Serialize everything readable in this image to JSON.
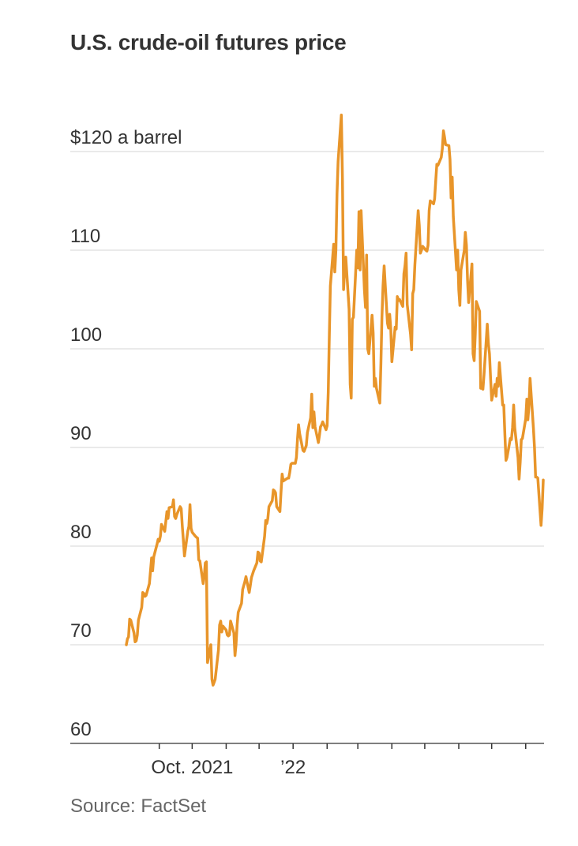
{
  "title": "U.S. crude-oil futures price",
  "source": "Source: FactSet",
  "colors": {
    "line": "#e8952a",
    "grid": "#dddddd",
    "axis": "#333333",
    "text": "#333333"
  },
  "chart_data": {
    "type": "line",
    "title": "U.S. crude-oil futures price",
    "ylim": [
      60,
      123
    ],
    "yticks": [
      60,
      70,
      80,
      90,
      100,
      110,
      120
    ],
    "ytick_labels": [
      "60",
      "70",
      "80",
      "90",
      "100",
      "110",
      "$120 a barrel"
    ],
    "xlim": [
      "2021-08-02",
      "2022-08-05"
    ],
    "xticks": [
      "2021-09-01",
      "2021-10-01",
      "2021-11-01",
      "2021-12-01",
      "2022-01-01",
      "2022-02-01",
      "2022-03-01",
      "2022-04-01",
      "2022-05-01",
      "2022-06-01",
      "2022-07-01",
      "2022-08-01"
    ],
    "xtick_labels": [
      {
        "date": "2021-10-01",
        "label": "Oct. 2021"
      },
      {
        "date": "2022-01-01",
        "label": "’22"
      }
    ],
    "grid": true,
    "series": [
      {
        "points": [
          [
            "2021-08-02",
            70.0
          ],
          [
            "2021-08-03",
            70.6
          ],
          [
            "2021-08-04",
            70.8
          ],
          [
            "2021-08-05",
            72.6
          ],
          [
            "2021-08-06",
            72.5
          ],
          [
            "2021-08-09",
            71.2
          ],
          [
            "2021-08-10",
            70.3
          ],
          [
            "2021-08-11",
            70.4
          ],
          [
            "2021-08-12",
            71.0
          ],
          [
            "2021-08-13",
            72.5
          ],
          [
            "2021-08-16",
            73.8
          ],
          [
            "2021-08-17",
            75.3
          ],
          [
            "2021-08-18",
            75.2
          ],
          [
            "2021-08-19",
            74.9
          ],
          [
            "2021-08-20",
            75.0
          ],
          [
            "2021-08-23",
            76.2
          ],
          [
            "2021-08-24",
            77.5
          ],
          [
            "2021-08-25",
            78.8
          ],
          [
            "2021-08-26",
            77.5
          ],
          [
            "2021-08-27",
            78.9
          ],
          [
            "2021-08-30",
            80.2
          ],
          [
            "2021-08-31",
            80.7
          ],
          [
            "2021-09-01",
            80.5
          ],
          [
            "2021-09-02",
            81.0
          ],
          [
            "2021-09-03",
            82.2
          ],
          [
            "2021-09-06",
            81.5
          ],
          [
            "2021-09-07",
            82.5
          ],
          [
            "2021-09-08",
            83.5
          ],
          [
            "2021-09-09",
            82.8
          ],
          [
            "2021-09-10",
            83.9
          ],
          [
            "2021-09-13",
            84.0
          ],
          [
            "2021-09-14",
            84.7
          ],
          [
            "2021-09-15",
            83.0
          ],
          [
            "2021-09-16",
            82.8
          ],
          [
            "2021-09-17",
            83.2
          ],
          [
            "2021-09-20",
            84.0
          ],
          [
            "2021-09-21",
            83.8
          ],
          [
            "2021-09-22",
            82.0
          ],
          [
            "2021-09-23",
            80.5
          ],
          [
            "2021-09-24",
            79.0
          ],
          [
            "2021-09-27",
            81.5
          ],
          [
            "2021-09-28",
            82.0
          ],
          [
            "2021-09-29",
            84.2
          ],
          [
            "2021-09-30",
            81.8
          ],
          [
            "2021-10-01",
            81.4
          ],
          [
            "2021-10-04",
            81.0
          ],
          [
            "2021-10-05",
            80.9
          ],
          [
            "2021-10-06",
            80.8
          ],
          [
            "2021-10-07",
            78.6
          ],
          [
            "2021-10-08",
            78.5
          ],
          [
            "2021-10-11",
            76.2
          ],
          [
            "2021-10-12",
            77.0
          ],
          [
            "2021-10-13",
            78.3
          ],
          [
            "2021-10-14",
            78.4
          ],
          [
            "2021-10-15",
            68.2
          ],
          [
            "2021-10-18",
            70.0
          ],
          [
            "2021-10-19",
            66.5
          ],
          [
            "2021-10-20",
            65.9
          ],
          [
            "2021-10-21",
            66.2
          ],
          [
            "2021-10-22",
            66.5
          ],
          [
            "2021-10-25",
            69.5
          ],
          [
            "2021-10-26",
            72.0
          ],
          [
            "2021-10-27",
            72.4
          ],
          [
            "2021-10-28",
            71.3
          ],
          [
            "2021-10-29",
            71.9
          ],
          [
            "2021-11-01",
            71.5
          ],
          [
            "2021-11-02",
            71.0
          ],
          [
            "2021-11-03",
            70.9
          ],
          [
            "2021-11-04",
            71.0
          ],
          [
            "2021-11-05",
            72.4
          ],
          [
            "2021-11-08",
            71.2
          ],
          [
            "2021-11-09",
            68.9
          ],
          [
            "2021-11-10",
            70.0
          ],
          [
            "2021-11-11",
            72.0
          ],
          [
            "2021-11-12",
            73.3
          ],
          [
            "2021-11-15",
            74.2
          ],
          [
            "2021-11-16",
            75.6
          ],
          [
            "2021-11-17",
            76.0
          ],
          [
            "2021-11-18",
            76.4
          ],
          [
            "2021-11-19",
            76.9
          ],
          [
            "2021-11-22",
            75.3
          ],
          [
            "2021-11-23",
            76.0
          ],
          [
            "2021-11-24",
            76.8
          ],
          [
            "2021-11-26",
            77.5
          ],
          [
            "2021-11-29",
            78.3
          ],
          [
            "2021-11-30",
            79.4
          ],
          [
            "2021-12-01",
            79.3
          ],
          [
            "2021-12-02",
            78.5
          ],
          [
            "2021-12-03",
            78.4
          ],
          [
            "2021-12-06",
            81.0
          ],
          [
            "2021-12-07",
            82.6
          ],
          [
            "2021-12-08",
            82.3
          ],
          [
            "2021-12-09",
            82.8
          ],
          [
            "2021-12-10",
            84.0
          ],
          [
            "2021-12-13",
            84.6
          ],
          [
            "2021-12-14",
            85.7
          ],
          [
            "2021-12-15",
            85.6
          ],
          [
            "2021-12-16",
            85.4
          ],
          [
            "2021-12-17",
            84.0
          ],
          [
            "2021-12-20",
            83.5
          ],
          [
            "2021-12-21",
            85.5
          ],
          [
            "2021-12-22",
            87.3
          ],
          [
            "2021-12-23",
            86.6
          ],
          [
            "2021-12-27",
            86.9
          ],
          [
            "2021-12-28",
            86.9
          ],
          [
            "2021-12-29",
            87.5
          ],
          [
            "2021-12-30",
            88.3
          ],
          [
            "2021-12-31",
            88.4
          ],
          [
            "2022-01-03",
            88.4
          ],
          [
            "2022-01-04",
            89.0
          ],
          [
            "2022-01-05",
            90.9
          ],
          [
            "2022-01-06",
            92.3
          ],
          [
            "2022-01-07",
            91.4
          ],
          [
            "2022-01-10",
            89.7
          ],
          [
            "2022-01-11",
            89.6
          ],
          [
            "2022-01-12",
            89.9
          ],
          [
            "2022-01-13",
            90.2
          ],
          [
            "2022-01-14",
            91.5
          ],
          [
            "2022-01-17",
            93.0
          ],
          [
            "2022-01-18",
            95.4
          ],
          [
            "2022-01-19",
            92.0
          ],
          [
            "2022-01-20",
            93.6
          ],
          [
            "2022-01-21",
            92.1
          ],
          [
            "2022-01-24",
            90.5
          ],
          [
            "2022-01-25",
            91.2
          ],
          [
            "2022-01-26",
            92.1
          ],
          [
            "2022-01-27",
            92.3
          ],
          [
            "2022-01-28",
            92.6
          ],
          [
            "2022-01-31",
            91.8
          ],
          [
            "2022-02-01",
            92.2
          ],
          [
            "2022-02-02",
            95.6
          ],
          [
            "2022-02-03",
            101.5
          ],
          [
            "2022-02-04",
            106.4
          ],
          [
            "2022-02-07",
            110.6
          ],
          [
            "2022-02-08",
            107.8
          ],
          [
            "2022-02-09",
            110.0
          ],
          [
            "2022-02-10",
            115.7
          ],
          [
            "2022-02-11",
            119.0
          ],
          [
            "2022-02-14",
            123.7
          ],
          [
            "2022-02-15",
            117.2
          ],
          [
            "2022-02-16",
            106.0
          ],
          [
            "2022-02-17",
            108.0
          ],
          [
            "2022-02-18",
            109.3
          ],
          [
            "2022-02-21",
            104.0
          ],
          [
            "2022-02-22",
            96.4
          ],
          [
            "2022-02-23",
            95.0
          ],
          [
            "2022-02-24",
            103.0
          ],
          [
            "2022-02-25",
            103.2
          ],
          [
            "2022-02-28",
            110.0
          ],
          [
            "2022-03-01",
            108.2
          ],
          [
            "2022-03-02",
            113.9
          ],
          [
            "2022-03-03",
            108.0
          ],
          [
            "2022-03-04",
            114.0
          ],
          [
            "2022-03-07",
            106.0
          ],
          [
            "2022-03-08",
            104.2
          ],
          [
            "2022-03-09",
            109.5
          ],
          [
            "2022-03-10",
            100.0
          ],
          [
            "2022-03-11",
            99.5
          ],
          [
            "2022-03-14",
            103.4
          ],
          [
            "2022-03-15",
            101.6
          ],
          [
            "2022-03-16",
            96.2
          ],
          [
            "2022-03-17",
            97.0
          ],
          [
            "2022-03-18",
            96.0
          ],
          [
            "2022-03-21",
            94.5
          ],
          [
            "2022-03-22",
            98.5
          ],
          [
            "2022-03-23",
            103.2
          ],
          [
            "2022-03-24",
            106.4
          ],
          [
            "2022-03-25",
            108.4
          ],
          [
            "2022-03-28",
            102.6
          ],
          [
            "2022-03-29",
            102.1
          ],
          [
            "2022-03-30",
            103.5
          ],
          [
            "2022-03-31",
            102.0
          ],
          [
            "2022-04-01",
            98.7
          ],
          [
            "2022-04-04",
            102.2
          ],
          [
            "2022-04-05",
            102.0
          ],
          [
            "2022-04-06",
            105.3
          ],
          [
            "2022-04-07",
            104.9
          ],
          [
            "2022-04-08",
            105.0
          ],
          [
            "2022-04-11",
            104.3
          ],
          [
            "2022-04-12",
            107.6
          ],
          [
            "2022-04-13",
            108.4
          ],
          [
            "2022-04-14",
            109.7
          ],
          [
            "2022-04-15",
            104.5
          ],
          [
            "2022-04-18",
            101.5
          ],
          [
            "2022-04-19",
            99.9
          ],
          [
            "2022-04-20",
            105.6
          ],
          [
            "2022-04-21",
            106.0
          ],
          [
            "2022-04-22",
            108.5
          ],
          [
            "2022-04-25",
            114.0
          ],
          [
            "2022-04-26",
            112.5
          ],
          [
            "2022-04-27",
            109.7
          ],
          [
            "2022-04-28",
            110.0
          ],
          [
            "2022-04-29",
            110.4
          ],
          [
            "2022-05-02",
            110.0
          ],
          [
            "2022-05-03",
            109.9
          ],
          [
            "2022-05-04",
            110.5
          ],
          [
            "2022-05-05",
            114.0
          ],
          [
            "2022-05-06",
            115.0
          ],
          [
            "2022-05-09",
            114.7
          ],
          [
            "2022-05-10",
            115.2
          ],
          [
            "2022-05-11",
            117.0
          ],
          [
            "2022-05-12",
            118.7
          ],
          [
            "2022-05-13",
            118.6
          ],
          [
            "2022-05-16",
            119.4
          ],
          [
            "2022-05-17",
            120.3
          ],
          [
            "2022-05-18",
            122.1
          ],
          [
            "2022-05-19",
            121.5
          ],
          [
            "2022-05-20",
            120.7
          ],
          [
            "2022-05-23",
            120.6
          ],
          [
            "2022-05-24",
            119.2
          ],
          [
            "2022-05-25",
            115.3
          ],
          [
            "2022-05-26",
            117.4
          ],
          [
            "2022-05-27",
            113.4
          ],
          [
            "2022-05-30",
            108.0
          ],
          [
            "2022-05-31",
            110.0
          ],
          [
            "2022-06-01",
            106.0
          ],
          [
            "2022-06-02",
            104.4
          ],
          [
            "2022-06-03",
            108.0
          ],
          [
            "2022-06-06",
            110.0
          ],
          [
            "2022-06-07",
            111.8
          ],
          [
            "2022-06-08",
            110.5
          ],
          [
            "2022-06-09",
            107.0
          ],
          [
            "2022-06-10",
            104.7
          ],
          [
            "2022-06-13",
            108.6
          ],
          [
            "2022-06-14",
            99.5
          ],
          [
            "2022-06-15",
            98.8
          ],
          [
            "2022-06-16",
            101.5
          ],
          [
            "2022-06-17",
            104.8
          ],
          [
            "2022-06-20",
            103.8
          ],
          [
            "2022-06-21",
            96.0
          ],
          [
            "2022-06-22",
            96.0
          ],
          [
            "2022-06-23",
            95.9
          ],
          [
            "2022-06-24",
            97.4
          ],
          [
            "2022-06-27",
            102.5
          ],
          [
            "2022-06-28",
            100.5
          ],
          [
            "2022-06-29",
            99.5
          ],
          [
            "2022-06-30",
            97.0
          ],
          [
            "2022-07-01",
            94.8
          ],
          [
            "2022-07-04",
            96.4
          ],
          [
            "2022-07-05",
            95.2
          ],
          [
            "2022-07-06",
            97.0
          ],
          [
            "2022-07-07",
            96.2
          ],
          [
            "2022-07-08",
            98.6
          ],
          [
            "2022-07-11",
            94.3
          ],
          [
            "2022-07-12",
            94.3
          ],
          [
            "2022-07-13",
            91.3
          ],
          [
            "2022-07-14",
            88.7
          ],
          [
            "2022-07-15",
            89.0
          ],
          [
            "2022-07-18",
            90.9
          ],
          [
            "2022-07-19",
            90.8
          ],
          [
            "2022-07-20",
            92.0
          ],
          [
            "2022-07-21",
            94.3
          ],
          [
            "2022-07-22",
            92.0
          ],
          [
            "2022-07-25",
            89.0
          ],
          [
            "2022-07-26",
            86.8
          ],
          [
            "2022-07-27",
            88.5
          ],
          [
            "2022-07-28",
            90.8
          ],
          [
            "2022-07-29",
            90.9
          ],
          [
            "2022-08-01",
            92.9
          ],
          [
            "2022-08-02",
            94.9
          ],
          [
            "2022-08-03",
            92.8
          ],
          [
            "2022-08-04",
            94.2
          ],
          [
            "2022-08-05",
            97.0
          ],
          [
            "2022-08-08",
            92.0
          ],
          [
            "2022-08-09",
            90.0
          ],
          [
            "2022-08-10",
            87.0
          ],
          [
            "2022-08-11",
            87.0
          ],
          [
            "2022-08-12",
            86.9
          ],
          [
            "2022-08-15",
            82.1
          ],
          [
            "2022-08-16",
            83.8
          ],
          [
            "2022-08-17",
            86.7
          ]
        ]
      }
    ]
  }
}
